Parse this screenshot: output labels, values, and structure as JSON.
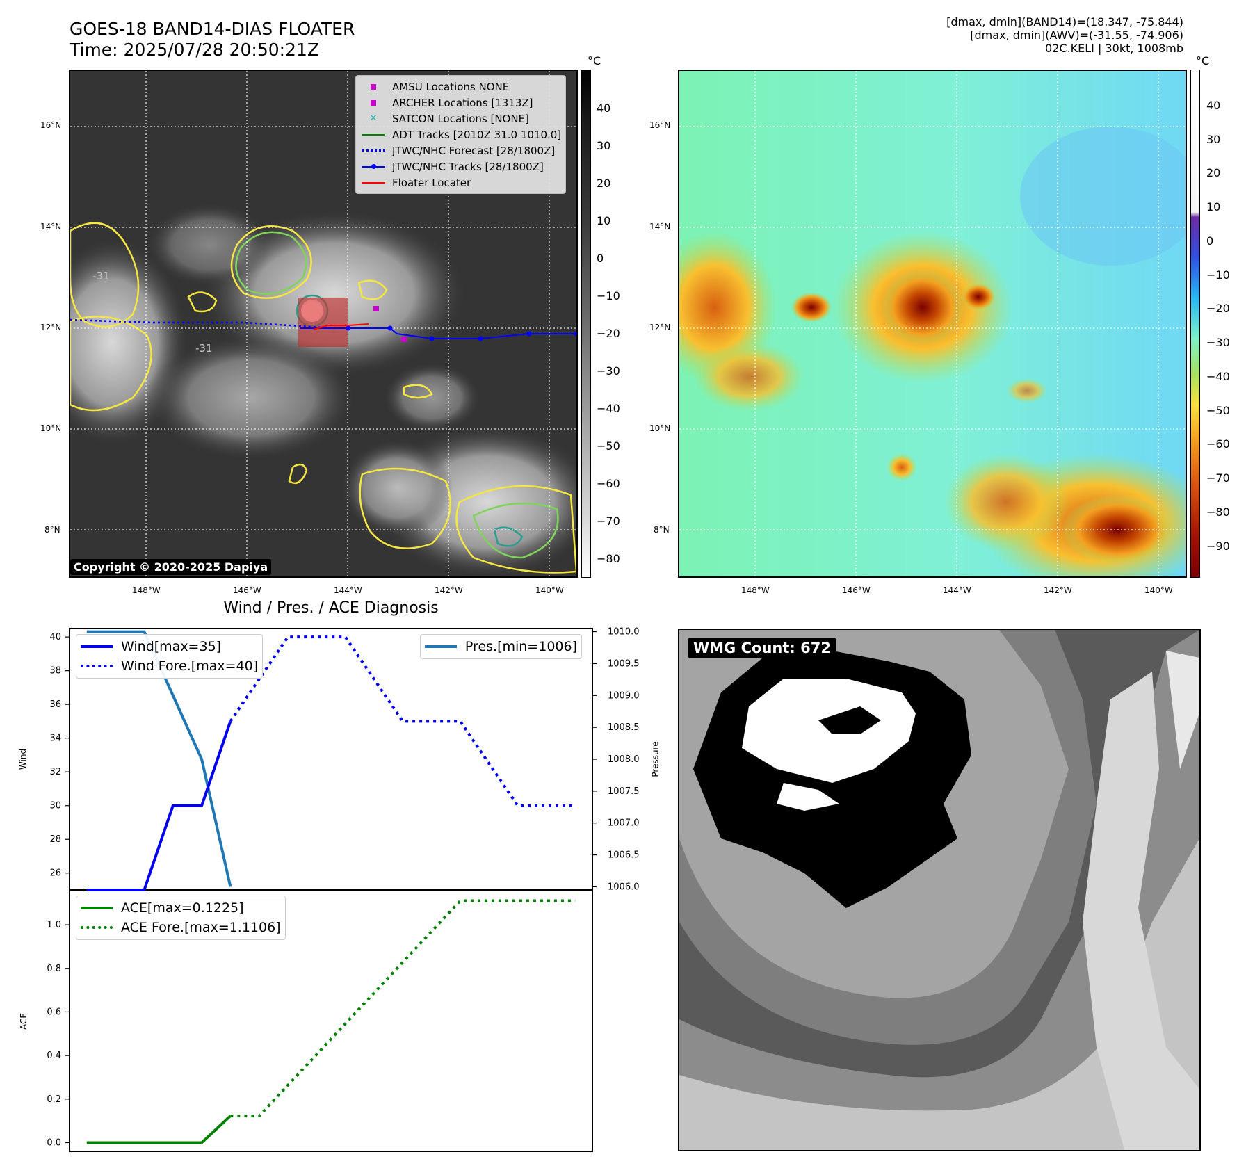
{
  "header": {
    "title_line1": "GOES-18 BAND14-DIAS FLOATER",
    "title_line2": "Time: 2025/07/28 20:50:21Z",
    "stats_line1": "[dmax, dmin](BAND14)=(18.347, -75.844)",
    "stats_line2": "[dmax, dmin](AWV)=(-31.55, -74.906)",
    "stats_line3": "02C.KELI | 30kt, 1008mb"
  },
  "map_axes": {
    "lat_labels": [
      "16°N",
      "14°N",
      "12°N",
      "10°N",
      "8°N"
    ],
    "lon_labels": [
      "148°W",
      "146°W",
      "144°W",
      "142°W",
      "140°W"
    ]
  },
  "ir_panel": {
    "legend": [
      {
        "label": "AMSU Locations NONE",
        "icon": "magenta-square"
      },
      {
        "label": "ARCHER Locations [1313Z]",
        "icon": "magenta-square"
      },
      {
        "label": "SATCON Locations [NONE]",
        "icon": "cyan-x"
      },
      {
        "label": "ADT Tracks [2010Z 31.0 1010.0]",
        "icon": "green-line"
      },
      {
        "label": "JTWC/NHC Forecast [28/1800Z]",
        "icon": "blue-dotted-line"
      },
      {
        "label": "JTWC/NHC Tracks [28/1800Z]",
        "icon": "blue-line-dot"
      },
      {
        "label": "Floater Locater",
        "icon": "red-line"
      }
    ],
    "copyright": "Copyright © 2020-2025 Dapiya",
    "contour_label": "-31",
    "colorbar_unit": "°C",
    "colorbar_ticks": [
      "40",
      "30",
      "20",
      "10",
      "0",
      "−10",
      "−20",
      "−30",
      "−40",
      "−50",
      "−60",
      "−70",
      "−80"
    ]
  },
  "awv_panel": {
    "colorbar_unit": "°C",
    "colorbar_ticks": [
      "40",
      "30",
      "20",
      "10",
      "0",
      "−10",
      "−20",
      "−30",
      "−40",
      "−50",
      "−60",
      "−70",
      "−80",
      "−90"
    ]
  },
  "diagnosis": {
    "title": "Wind / Pres. / ACE Diagnosis",
    "wind_ylabel": "Wind",
    "pres_ylabel": "Pressure",
    "ace_ylabel": "ACE",
    "wind_ticks": [
      "40",
      "38",
      "36",
      "34",
      "32",
      "30",
      "28",
      "26"
    ],
    "pres_ticks": [
      "1010.0",
      "1009.5",
      "1009.0",
      "1008.5",
      "1008.0",
      "1007.5",
      "1007.0",
      "1006.5",
      "1006.0"
    ],
    "ace_ticks": [
      "1.0",
      "0.8",
      "0.6",
      "0.4",
      "0.2",
      "0.0"
    ],
    "legend_wind": "Wind[max=35]",
    "legend_wind_fore": "Wind Fore.[max=40]",
    "legend_pres": "Pres.[min=1006]",
    "legend_ace": "ACE[max=0.1225]",
    "legend_ace_fore": "ACE Fore.[max=1.1106]"
  },
  "wmg_panel": {
    "label": "WMG Count: 672"
  },
  "chart_data": [
    {
      "type": "line",
      "title": "Wind / Pres. / ACE Diagnosis",
      "ylabel": "Wind",
      "ylim": [
        25,
        40.5
      ],
      "x": [
        0,
        1,
        2,
        3,
        4,
        5,
        6,
        7,
        8,
        9,
        10,
        11,
        12,
        13,
        14,
        15,
        16,
        17
      ],
      "series": [
        {
          "name": "Wind[max=35]",
          "color": "#0000ee",
          "style": "solid",
          "x": [
            0,
            2,
            3,
            4,
            5
          ],
          "values": [
            25,
            25,
            30,
            30,
            35
          ]
        },
        {
          "name": "Wind Fore.[max=40]",
          "color": "#0000ee",
          "style": "dotted",
          "x": [
            5,
            7,
            9,
            11,
            13,
            15,
            17
          ],
          "values": [
            35,
            40,
            40,
            35,
            35,
            30,
            30
          ]
        }
      ]
    },
    {
      "type": "line",
      "ylabel": "Pressure",
      "ylim": [
        1005.95,
        1010.05
      ],
      "series": [
        {
          "name": "Pres.[min=1006]",
          "color": "#1f77b4",
          "style": "solid",
          "x": [
            0,
            2,
            4,
            5
          ],
          "values": [
            1010.0,
            1010.0,
            1008.0,
            1006.0
          ]
        }
      ]
    },
    {
      "type": "line",
      "ylabel": "ACE",
      "ylim": [
        -0.04,
        1.16
      ],
      "series": [
        {
          "name": "ACE[max=0.1225]",
          "color": "#008000",
          "style": "solid",
          "x": [
            0,
            4,
            5
          ],
          "values": [
            0.0,
            0.0,
            0.1225
          ]
        },
        {
          "name": "ACE Fore.[max=1.1106]",
          "color": "#008000",
          "style": "dotted",
          "x": [
            5,
            6,
            13,
            17
          ],
          "values": [
            0.1225,
            0.1225,
            1.1106,
            1.1106
          ]
        }
      ]
    }
  ],
  "colors": {
    "wind": "#0000ee",
    "pressure": "#1f77b4",
    "ace": "#008000",
    "track": "#0000ff",
    "floater": "#ff0000",
    "contour_yellow": "#f5e642",
    "contour_green": "#7fd35a",
    "contour_teal": "#2a9d8f"
  }
}
